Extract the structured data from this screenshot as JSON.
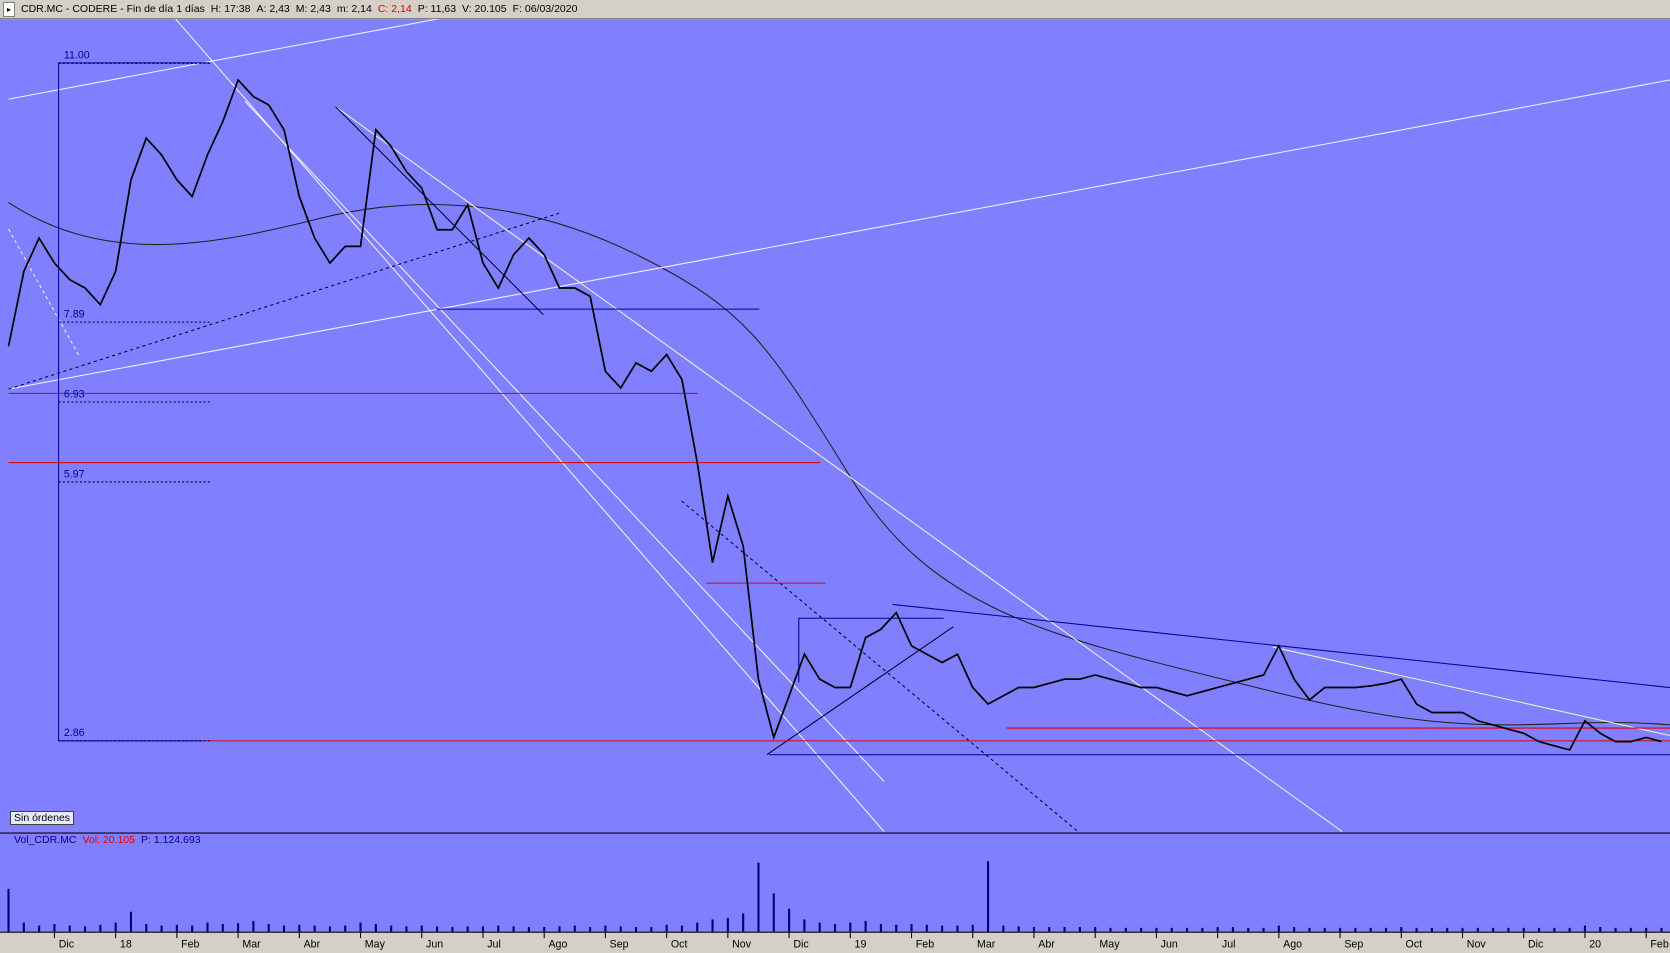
{
  "chart_data": {
    "type": "line",
    "title": "CDR.MC - CODERE - Fin de día 1 días",
    "info": [
      "H: 17:38",
      "A: 2,43",
      "M: 2,43",
      "m: 2,14",
      "C: 2,14",
      "P: 11,63",
      "V: 20.105",
      "F: 06/03/2020"
    ],
    "annotation": "Sin órdenes",
    "categories": [
      null,
      null,
      null,
      "Dic",
      null,
      null,
      null,
      "18",
      null,
      null,
      null,
      "Feb",
      null,
      null,
      null,
      "Mar",
      null,
      null,
      null,
      "Abr",
      null,
      null,
      null,
      "May",
      null,
      null,
      null,
      "Jun",
      null,
      null,
      null,
      "Jul",
      null,
      null,
      null,
      "Ago",
      null,
      null,
      null,
      "Sep",
      null,
      null,
      null,
      "Oct",
      null,
      null,
      null,
      "Nov",
      null,
      null,
      null,
      "Dic",
      null,
      null,
      null,
      "19",
      null,
      null,
      null,
      "Feb",
      null,
      null,
      null,
      "Mar",
      null,
      null,
      null,
      "Abr",
      null,
      null,
      null,
      "May",
      null,
      null,
      null,
      "Jun",
      null,
      null,
      null,
      "Jul",
      null,
      null,
      null,
      "Ago",
      null,
      null,
      null,
      "Sep",
      null,
      null,
      null,
      "Oct",
      null,
      null,
      null,
      "Nov",
      null,
      null,
      null,
      "Dic",
      null,
      null,
      null,
      "20",
      null,
      null,
      null,
      "Feb",
      null
    ],
    "values": [
      7.6,
      8.5,
      8.9,
      8.6,
      8.4,
      8.3,
      8.1,
      8.5,
      9.6,
      10.1,
      9.9,
      9.6,
      9.4,
      9.9,
      10.3,
      10.8,
      10.6,
      10.5,
      10.2,
      9.4,
      8.9,
      8.6,
      8.8,
      8.8,
      10.2,
      10.0,
      9.7,
      9.5,
      9.0,
      9.0,
      9.3,
      8.6,
      8.3,
      8.7,
      8.9,
      8.7,
      8.3,
      8.3,
      8.2,
      7.3,
      7.1,
      7.4,
      7.3,
      7.5,
      7.2,
      6.2,
      5.0,
      5.8,
      5.2,
      3.6,
      2.9,
      3.4,
      3.9,
      3.6,
      3.5,
      3.5,
      4.1,
      4.2,
      4.4,
      4.0,
      3.9,
      3.8,
      3.9,
      3.5,
      3.3,
      3.4,
      3.5,
      3.5,
      3.55,
      3.6,
      3.6,
      3.65,
      3.6,
      3.55,
      3.5,
      3.5,
      3.45,
      3.4,
      3.45,
      3.5,
      3.55,
      3.6,
      3.65,
      4.0,
      3.6,
      3.35,
      3.5,
      3.5,
      3.5,
      3.52,
      3.55,
      3.6,
      3.3,
      3.2,
      3.2,
      3.2,
      3.1,
      3.05,
      3.0,
      2.95,
      2.85,
      2.8,
      2.75,
      3.1,
      2.95,
      2.85,
      2.85,
      2.9,
      2.85
    ],
    "color": "#000000",
    "ylim": [
      1.77,
      11.53
    ],
    "levels": [
      {
        "value": 11,
        "label": "11.00"
      },
      7.89,
      6.93,
      5.97,
      2.86
    ],
    "volume": {
      "title": "Vol_CDR.MC",
      "info": [
        "Vol: 20.105",
        "P: 1.124.693"
      ],
      "color": "#000080",
      "ylim": [
        0,
        550000
      ],
      "values": [
        280000,
        60000,
        40000,
        50000,
        40000,
        35000,
        45000,
        60000,
        130000,
        50000,
        40000,
        45000,
        40000,
        60000,
        50000,
        55000,
        70000,
        50000,
        40000,
        45000,
        40000,
        35000,
        40000,
        60000,
        50000,
        40000,
        35000,
        40000,
        35000,
        30000,
        35000,
        35000,
        40000,
        35000,
        30000,
        30000,
        35000,
        40000,
        30000,
        40000,
        35000,
        30000,
        30000,
        45000,
        40000,
        60000,
        80000,
        90000,
        120000,
        450000,
        250000,
        150000,
        80000,
        60000,
        50000,
        60000,
        70000,
        50000,
        45000,
        50000,
        45000,
        40000,
        40000,
        45000,
        460000,
        40000,
        35000,
        30000,
        30000,
        30000,
        30000,
        30000,
        25000,
        25000,
        25000,
        25000,
        25000,
        25000,
        25000,
        30000,
        30000,
        25000,
        25000,
        40000,
        30000,
        25000,
        25000,
        25000,
        25000,
        25000,
        25000,
        30000,
        25000,
        25000,
        25000,
        25000,
        25000,
        25000,
        25000,
        25000,
        25000,
        25000,
        25000,
        40000,
        30000,
        25000,
        25000,
        25000,
        25000
      ]
    }
  }
}
